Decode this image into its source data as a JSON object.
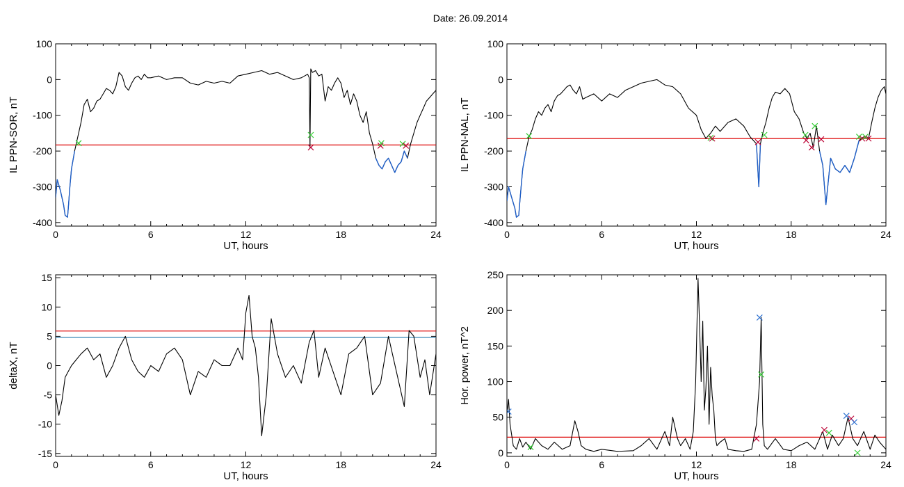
{
  "page": {
    "title": "Date:  26.09.2014"
  },
  "chart_data": [
    {
      "id": "sor",
      "type": "line",
      "ylabel": "IL PPN-SOR, nT",
      "xlabel": "UT, hours",
      "xlim": [
        0,
        24
      ],
      "ylim": [
        -410,
        100
      ],
      "xticks": [
        0,
        6,
        12,
        18,
        24
      ],
      "yticks": [
        -400,
        -300,
        -200,
        -100,
        0,
        100
      ],
      "threshold_lines": [
        {
          "value": -183,
          "color": "#dd0000"
        }
      ],
      "series": [
        {
          "color": "#000000",
          "x": [
            0,
            0.1,
            0.3,
            0.5,
            0.6,
            0.75,
            0.8,
            0.9,
            1.0,
            1.2,
            1.4,
            1.6,
            1.8,
            2.0,
            2.2,
            2.4,
            2.6,
            2.8,
            3.0,
            3.2,
            3.4,
            3.6,
            3.8,
            4.0,
            4.2,
            4.4,
            4.6,
            4.8,
            5.0,
            5.2,
            5.4,
            5.6,
            5.8,
            6.0,
            6.5,
            7.0,
            7.5,
            8.0,
            8.5,
            9.0,
            9.5,
            10.0,
            10.5,
            11.0,
            11.5,
            12.0,
            12.5,
            13.0,
            13.5,
            14.0,
            14.5,
            15.0,
            15.5,
            15.9,
            16.0,
            16.05,
            16.1,
            16.2,
            16.4,
            16.6,
            16.8,
            17.0,
            17.2,
            17.4,
            17.6,
            17.8,
            18.0,
            18.2,
            18.4,
            18.6,
            18.8,
            19.0,
            19.2,
            19.4,
            19.6,
            19.8,
            20.0,
            20.2,
            20.4,
            20.6,
            20.8,
            21.0,
            21.2,
            21.4,
            21.6,
            21.8,
            22.0,
            22.2,
            22.4,
            22.6,
            22.8,
            23.0,
            23.2,
            23.4,
            23.6,
            23.8,
            24.0
          ],
          "y": [
            -330,
            -280,
            -310,
            -350,
            -380,
            -385,
            -360,
            -300,
            -250,
            -200,
            -160,
            -120,
            -70,
            -55,
            -90,
            -80,
            -60,
            -55,
            -40,
            -25,
            -30,
            -40,
            -20,
            20,
            10,
            -20,
            -30,
            -10,
            5,
            10,
            0,
            15,
            5,
            5,
            10,
            0,
            5,
            5,
            -10,
            -15,
            -5,
            -10,
            -5,
            -10,
            10,
            15,
            20,
            25,
            15,
            20,
            10,
            0,
            5,
            15,
            5,
            -190,
            30,
            20,
            25,
            10,
            15,
            -60,
            -20,
            -30,
            -10,
            5,
            -10,
            -50,
            -30,
            -70,
            -40,
            -60,
            -100,
            -120,
            -90,
            -150,
            -180,
            -220,
            -240,
            -250,
            -230,
            -220,
            -240,
            -260,
            -240,
            -230,
            -200,
            -220,
            -180,
            -150,
            -120,
            -100,
            -80,
            -60,
            -50,
            -40,
            -30
          ]
        }
      ],
      "markers": [
        {
          "x": 1.45,
          "y": -178,
          "color": "#33cc33"
        },
        {
          "x": 16.1,
          "y": -155,
          "color": "#33cc33"
        },
        {
          "x": 16.1,
          "y": -190,
          "color": "#bb0033"
        },
        {
          "x": 20.5,
          "y": -185,
          "color": "#bb0033"
        },
        {
          "x": 20.55,
          "y": -178,
          "color": "#33cc33"
        },
        {
          "x": 21.9,
          "y": -180,
          "color": "#33cc33"
        },
        {
          "x": 22.1,
          "y": -185,
          "color": "#bb0033"
        }
      ]
    },
    {
      "id": "nal",
      "type": "line",
      "ylabel": "IL PPN-NAL, nT",
      "xlabel": "UT, hours",
      "xlim": [
        0,
        24
      ],
      "ylim": [
        -410,
        100
      ],
      "xticks": [
        0,
        6,
        12,
        18,
        24
      ],
      "yticks": [
        -400,
        -300,
        -200,
        -100,
        0,
        100
      ],
      "threshold_lines": [
        {
          "value": -165,
          "color": "#dd0000"
        }
      ],
      "series": [
        {
          "color": "#000000",
          "x": [
            0,
            0.1,
            0.3,
            0.5,
            0.6,
            0.75,
            0.8,
            0.9,
            1.0,
            1.2,
            1.4,
            1.6,
            1.8,
            2.0,
            2.2,
            2.4,
            2.6,
            2.8,
            3.0,
            3.2,
            3.4,
            3.6,
            3.8,
            4.0,
            4.2,
            4.4,
            4.6,
            4.8,
            5.0,
            5.5,
            6.0,
            6.5,
            7.0,
            7.5,
            8.0,
            8.5,
            9.0,
            9.5,
            10.0,
            10.5,
            11.0,
            11.5,
            12.0,
            12.3,
            12.6,
            12.9,
            13.2,
            13.5,
            14.0,
            14.5,
            15.0,
            15.4,
            15.8,
            15.95,
            16.05,
            16.2,
            16.4,
            16.6,
            16.8,
            17.0,
            17.3,
            17.6,
            17.9,
            18.2,
            18.5,
            18.8,
            19.0,
            19.2,
            19.4,
            19.6,
            19.8,
            20.0,
            20.2,
            20.5,
            20.8,
            21.1,
            21.4,
            21.7,
            22.0,
            22.3,
            22.6,
            22.9,
            23.1,
            23.3,
            23.5,
            23.7,
            23.9,
            24.0
          ],
          "y": [
            -340,
            -300,
            -330,
            -360,
            -385,
            -380,
            -350,
            -300,
            -250,
            -200,
            -160,
            -140,
            -110,
            -90,
            -100,
            -80,
            -70,
            -90,
            -60,
            -45,
            -40,
            -30,
            -20,
            -15,
            -30,
            -40,
            -20,
            -55,
            -50,
            -40,
            -60,
            -40,
            -50,
            -30,
            -20,
            -10,
            -5,
            0,
            -15,
            -20,
            -40,
            -80,
            -100,
            -140,
            -165,
            -150,
            -130,
            -145,
            -120,
            -110,
            -130,
            -160,
            -180,
            -300,
            -180,
            -150,
            -120,
            -80,
            -50,
            -35,
            -40,
            -25,
            -40,
            -90,
            -110,
            -150,
            -165,
            -150,
            -190,
            -130,
            -200,
            -240,
            -350,
            -220,
            -250,
            -260,
            -240,
            -260,
            -220,
            -170,
            -160,
            -165,
            -120,
            -80,
            -50,
            -30,
            -20,
            -40
          ]
        }
      ],
      "markers": [
        {
          "x": 1.4,
          "y": -158,
          "color": "#33cc33"
        },
        {
          "x": 12.9,
          "y": -163,
          "color": "#33cc33"
        },
        {
          "x": 13.0,
          "y": -165,
          "color": "#bb0033"
        },
        {
          "x": 15.9,
          "y": -175,
          "color": "#bb0033"
        },
        {
          "x": 16.3,
          "y": -155,
          "color": "#33cc33"
        },
        {
          "x": 18.9,
          "y": -155,
          "color": "#33cc33"
        },
        {
          "x": 18.95,
          "y": -170,
          "color": "#bb0033"
        },
        {
          "x": 19.3,
          "y": -190,
          "color": "#bb0033"
        },
        {
          "x": 19.5,
          "y": -130,
          "color": "#33cc33"
        },
        {
          "x": 19.9,
          "y": -167,
          "color": "#bb0033"
        },
        {
          "x": 22.3,
          "y": -160,
          "color": "#33cc33"
        },
        {
          "x": 22.5,
          "y": -165,
          "color": "#bb0033"
        },
        {
          "x": 22.7,
          "y": -160,
          "color": "#33cc33"
        },
        {
          "x": 22.9,
          "y": -165,
          "color": "#bb0033"
        }
      ]
    },
    {
      "id": "deltax",
      "type": "line",
      "ylabel": "deltaX, nT",
      "xlabel": "UT, hours",
      "xlim": [
        0,
        24
      ],
      "ylim": [
        -15.5,
        15.5
      ],
      "xticks": [
        0,
        6,
        12,
        18,
        24
      ],
      "yticks": [
        -15,
        -10,
        -5,
        0,
        5,
        10,
        15
      ],
      "threshold_lines": [
        {
          "value": 5.9,
          "color": "#dd0000"
        },
        {
          "value": 4.8,
          "color": "#2a7fb0"
        }
      ],
      "series": [
        {
          "color": "#000000",
          "x": [
            0,
            0.2,
            0.4,
            0.6,
            0.8,
            1.0,
            1.3,
            1.6,
            2.0,
            2.4,
            2.8,
            3.2,
            3.6,
            4.0,
            4.4,
            4.8,
            5.2,
            5.6,
            6.0,
            6.5,
            7.0,
            7.5,
            8.0,
            8.5,
            9.0,
            9.5,
            10.0,
            10.5,
            11.0,
            11.5,
            11.8,
            12.0,
            12.2,
            12.4,
            12.6,
            12.8,
            13.0,
            13.3,
            13.6,
            14.0,
            14.5,
            15.0,
            15.5,
            16.0,
            16.3,
            16.6,
            17.0,
            17.5,
            18.0,
            18.5,
            19.0,
            19.5,
            20.0,
            20.5,
            21.0,
            21.5,
            22.0,
            22.3,
            22.6,
            23.0,
            23.3,
            23.6,
            24.0
          ],
          "y": [
            -5,
            -8.5,
            -6,
            -2,
            -1,
            0,
            1,
            2,
            3,
            1,
            2,
            -2,
            0,
            3,
            5,
            1,
            -1,
            -2,
            0,
            -1,
            2,
            3,
            1,
            -5,
            -1,
            -2,
            1,
            0,
            0,
            3,
            1,
            9,
            12,
            5,
            3,
            -2,
            -12,
            -5,
            8,
            2,
            -2,
            0,
            -3,
            4,
            6,
            -2,
            3,
            -1,
            -5,
            2,
            3,
            5,
            -5,
            -3,
            5,
            -1,
            -7,
            6,
            5,
            -2,
            1,
            -5,
            2
          ]
        }
      ],
      "markers": []
    },
    {
      "id": "power",
      "type": "line",
      "ylabel": "Hor. power, nT^2",
      "xlabel": "UT, hours",
      "xlim": [
        0,
        24
      ],
      "ylim": [
        -5,
        250
      ],
      "xticks": [
        0,
        6,
        12,
        18,
        24
      ],
      "yticks": [
        0,
        50,
        100,
        150,
        200,
        250
      ],
      "threshold_lines": [
        {
          "value": 22,
          "color": "#dd0000"
        }
      ],
      "series": [
        {
          "color": "#000000",
          "x": [
            0,
            0.1,
            0.2,
            0.4,
            0.6,
            0.8,
            1.0,
            1.2,
            1.5,
            1.8,
            2.2,
            2.6,
            3.0,
            3.5,
            4.0,
            4.3,
            4.5,
            4.7,
            5.0,
            5.5,
            6.0,
            7.0,
            8.0,
            8.5,
            9.0,
            9.5,
            10.0,
            10.3,
            10.5,
            10.8,
            11.0,
            11.3,
            11.6,
            11.8,
            11.95,
            12.1,
            12.2,
            12.3,
            12.4,
            12.5,
            12.6,
            12.7,
            12.8,
            12.9,
            13.0,
            13.1,
            13.2,
            13.3,
            13.5,
            13.8,
            14.0,
            14.5,
            15.0,
            15.5,
            15.8,
            16.0,
            16.1,
            16.2,
            16.3,
            16.5,
            17.0,
            17.5,
            18.0,
            18.5,
            19.0,
            19.5,
            20.0,
            20.3,
            20.6,
            21.0,
            21.3,
            21.6,
            21.9,
            22.2,
            22.6,
            23.0,
            23.3,
            23.6,
            24.0
          ],
          "y": [
            55,
            75,
            40,
            10,
            5,
            20,
            8,
            15,
            5,
            20,
            10,
            5,
            15,
            5,
            10,
            45,
            30,
            10,
            5,
            2,
            5,
            2,
            3,
            10,
            20,
            5,
            30,
            10,
            50,
            20,
            10,
            20,
            5,
            30,
            100,
            245,
            180,
            100,
            185,
            60,
            90,
            150,
            40,
            120,
            80,
            60,
            20,
            10,
            15,
            20,
            5,
            3,
            2,
            5,
            40,
            100,
            190,
            40,
            10,
            5,
            20,
            5,
            3,
            10,
            15,
            5,
            30,
            5,
            25,
            10,
            20,
            50,
            20,
            10,
            30,
            5,
            25,
            15,
            5
          ]
        }
      ],
      "markers": [
        {
          "x": 0.1,
          "y": 58,
          "color": "#2a6fd0"
        },
        {
          "x": 1.5,
          "y": 8,
          "color": "#33cc33"
        },
        {
          "x": 15.8,
          "y": 20,
          "color": "#bb0033"
        },
        {
          "x": 16.0,
          "y": 190,
          "color": "#2a6fd0"
        },
        {
          "x": 16.1,
          "y": 110,
          "color": "#33cc33"
        },
        {
          "x": 20.1,
          "y": 32,
          "color": "#bb0033"
        },
        {
          "x": 20.4,
          "y": 28,
          "color": "#33cc33"
        },
        {
          "x": 21.5,
          "y": 52,
          "color": "#2a6fd0"
        },
        {
          "x": 21.8,
          "y": 48,
          "color": "#bb0033"
        },
        {
          "x": 22.0,
          "y": 43,
          "color": "#2a6fd0"
        },
        {
          "x": 22.2,
          "y": 0,
          "color": "#33cc33"
        }
      ]
    }
  ]
}
